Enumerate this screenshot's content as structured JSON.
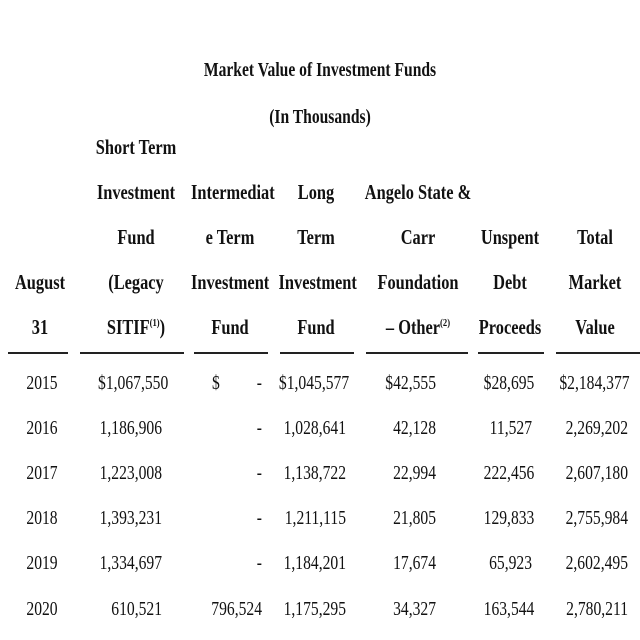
{
  "title": {
    "line1": "Market Value of Investment Funds",
    "line2": "(In Thousands)"
  },
  "columns": {
    "august": "August 31",
    "short_term": "Short Term\nInvestment Fund\n(Legacy SITIF",
    "short_term_note": "(1)",
    "short_term_close": ")",
    "intermediate": "Intermediat\ne Term\nInvestment\nFund",
    "long_term": "Long Term\nInvestment\nFund",
    "angelo": "Angelo State &\nCarr Foundation\n– Other",
    "angelo_note": "(2)",
    "unspent": "Unspent\nDebt\nProceeds",
    "total": "Total Market\nValue"
  },
  "rows": [
    {
      "year": "2015",
      "short_term": "$1,067,550",
      "intermediate_prefix": "$",
      "intermediate": "-",
      "long_term": "$1,045,577",
      "angelo": "$42,555",
      "unspent": "$28,695",
      "total": "$2,184,377"
    },
    {
      "year": "2016",
      "short_term": "1,186,906",
      "intermediate_prefix": "",
      "intermediate": "-",
      "long_term": "1,028,641",
      "angelo": "42,128",
      "unspent": "11,527",
      "total": "2,269,202"
    },
    {
      "year": "2017",
      "short_term": "1,223,008",
      "intermediate_prefix": "",
      "intermediate": "-",
      "long_term": "1,138,722",
      "angelo": "22,994",
      "unspent": "222,456",
      "total": "2,607,180"
    },
    {
      "year": "2018",
      "short_term": "1,393,231",
      "intermediate_prefix": "",
      "intermediate": "-",
      "long_term": "1,211,115",
      "angelo": "21,805",
      "unspent": "129,833",
      "total": "2,755,984"
    },
    {
      "year": "2019",
      "short_term": "1,334,697",
      "intermediate_prefix": "",
      "intermediate": "-",
      "long_term": "1,184,201",
      "angelo": "17,674",
      "unspent": "65,923",
      "total": "2,602,495"
    },
    {
      "year": "2020",
      "short_term": "610,521",
      "intermediate_prefix": "",
      "intermediate": "796,524",
      "long_term": "1,175,295",
      "angelo": "34,327",
      "unspent": "163,544",
      "total": "2,780,211"
    }
  ]
}
